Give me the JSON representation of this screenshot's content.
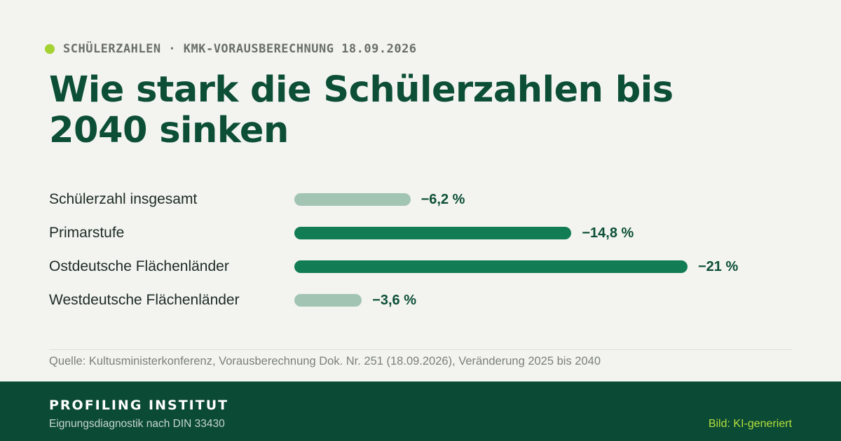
{
  "kicker": {
    "text": "SCHÜLERZAHLEN · KMK-VORAUSBERECHNUNG 18.09.2026"
  },
  "title": "Wie stark die Schülerzahlen bis 2040 sinken",
  "chart_data": {
    "type": "bar",
    "orientation": "horizontal",
    "categories": [
      "Schülerzahl insgesamt",
      "Primarstufe",
      "Ostdeutsche Flächenländer",
      "Westdeutsche Flächenländer"
    ],
    "values": [
      -6.2,
      -14.8,
      -21,
      -3.6
    ],
    "value_labels": [
      "−6,2 %",
      "−14,8 %",
      "−21 %",
      "−3,6 %"
    ],
    "highlighted": [
      false,
      true,
      true,
      false
    ],
    "unit": "%",
    "xlim": [
      0,
      -21
    ],
    "grid": false,
    "legend": "none"
  },
  "source": "Quelle: Kultusministerkonferenz, Vorausberechnung Dok. Nr. 251 (18.09.2026), Veränderung 2025 bis 2040",
  "footer": {
    "brand": "PROFILING INSTITUT",
    "subtitle": "Eignungsdiagnostik nach DIN 33430",
    "credit": "Bild: KI-generiert"
  },
  "colors": {
    "background": "#f3f4ef",
    "accent": "#a4d233",
    "title": "#0c4f36",
    "bar_strong": "#127c55",
    "bar_muted": "#a2c4b3",
    "footer_bg": "#0b4a35",
    "credit": "#b5df3c"
  }
}
